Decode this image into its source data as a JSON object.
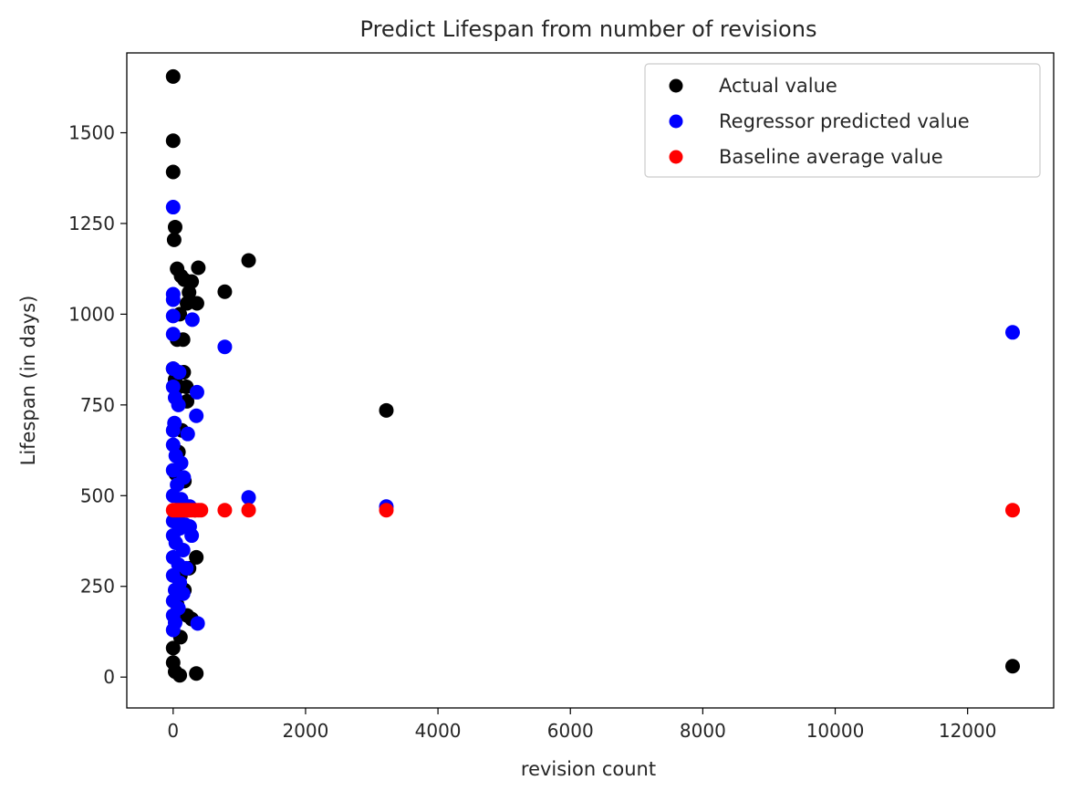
{
  "chart_data": {
    "type": "scatter",
    "title": "Predict Lifespan from number of revisions",
    "xlabel": "revision count",
    "ylabel": "Lifespan (in days)",
    "xlim": [
      -700,
      13300
    ],
    "ylim": [
      -85,
      1720
    ],
    "xticks": [
      0,
      2000,
      4000,
      6000,
      8000,
      10000,
      12000
    ],
    "yticks": [
      0,
      250,
      500,
      750,
      1000,
      1250,
      1500
    ],
    "grid": false,
    "legend_position": "upper right",
    "series": [
      {
        "name": "Actual value",
        "color": "#000000",
        "points": [
          [
            0,
            1655
          ],
          [
            0,
            1478
          ],
          [
            0,
            1392
          ],
          [
            30,
            1240
          ],
          [
            15,
            1205
          ],
          [
            60,
            1125
          ],
          [
            120,
            1105
          ],
          [
            170,
            1095
          ],
          [
            280,
            1090
          ],
          [
            240,
            1060
          ],
          [
            380,
            1128
          ],
          [
            1140,
            1148
          ],
          [
            780,
            1062
          ],
          [
            360,
            1030
          ],
          [
            210,
            1030
          ],
          [
            100,
            1000
          ],
          [
            60,
            930
          ],
          [
            150,
            930
          ],
          [
            0,
            850
          ],
          [
            30,
            820
          ],
          [
            90,
            800
          ],
          [
            160,
            840
          ],
          [
            200,
            800
          ],
          [
            210,
            760
          ],
          [
            130,
            680
          ],
          [
            80,
            620
          ],
          [
            40,
            560
          ],
          [
            170,
            540
          ],
          [
            230,
            460
          ],
          [
            330,
            460
          ],
          [
            3220,
            735
          ],
          [
            350,
            330
          ],
          [
            240,
            300
          ],
          [
            110,
            280
          ],
          [
            170,
            240
          ],
          [
            60,
            200
          ],
          [
            210,
            170
          ],
          [
            280,
            160
          ],
          [
            110,
            110
          ],
          [
            0,
            80
          ],
          [
            0,
            40
          ],
          [
            30,
            15
          ],
          [
            100,
            5
          ],
          [
            350,
            10
          ],
          [
            12680,
            30
          ]
        ]
      },
      {
        "name": "Regressor predicted value",
        "color": "#0000ff",
        "points": [
          [
            0,
            1295
          ],
          [
            0,
            1055
          ],
          [
            0,
            1040
          ],
          [
            0,
            995
          ],
          [
            0,
            945
          ],
          [
            290,
            985
          ],
          [
            780,
            910
          ],
          [
            0,
            850
          ],
          [
            90,
            840
          ],
          [
            0,
            800
          ],
          [
            30,
            770
          ],
          [
            360,
            785
          ],
          [
            80,
            750
          ],
          [
            350,
            720
          ],
          [
            20,
            700
          ],
          [
            0,
            680
          ],
          [
            220,
            670
          ],
          [
            0,
            640
          ],
          [
            40,
            610
          ],
          [
            120,
            590
          ],
          [
            0,
            570
          ],
          [
            160,
            550
          ],
          [
            60,
            530
          ],
          [
            1140,
            495
          ],
          [
            3220,
            470
          ],
          [
            0,
            500
          ],
          [
            120,
            490
          ],
          [
            250,
            470
          ],
          [
            80,
            450
          ],
          [
            0,
            430
          ],
          [
            180,
            420
          ],
          [
            250,
            415
          ],
          [
            100,
            410
          ],
          [
            0,
            390
          ],
          [
            280,
            390
          ],
          [
            40,
            370
          ],
          [
            150,
            350
          ],
          [
            0,
            330
          ],
          [
            80,
            310
          ],
          [
            200,
            300
          ],
          [
            0,
            280
          ],
          [
            100,
            260
          ],
          [
            30,
            240
          ],
          [
            150,
            230
          ],
          [
            0,
            210
          ],
          [
            80,
            190
          ],
          [
            0,
            170
          ],
          [
            30,
            150
          ],
          [
            370,
            148
          ],
          [
            0,
            130
          ],
          [
            12680,
            950
          ]
        ]
      },
      {
        "name": "Baseline average value",
        "color": "#ff0000",
        "points": [
          [
            0,
            460
          ],
          [
            40,
            460
          ],
          [
            80,
            460
          ],
          [
            120,
            460
          ],
          [
            160,
            460
          ],
          [
            200,
            460
          ],
          [
            240,
            460
          ],
          [
            280,
            460
          ],
          [
            330,
            460
          ],
          [
            380,
            460
          ],
          [
            420,
            460
          ],
          [
            780,
            460
          ],
          [
            1140,
            460
          ],
          [
            3220,
            460
          ],
          [
            12680,
            460
          ]
        ]
      }
    ]
  }
}
